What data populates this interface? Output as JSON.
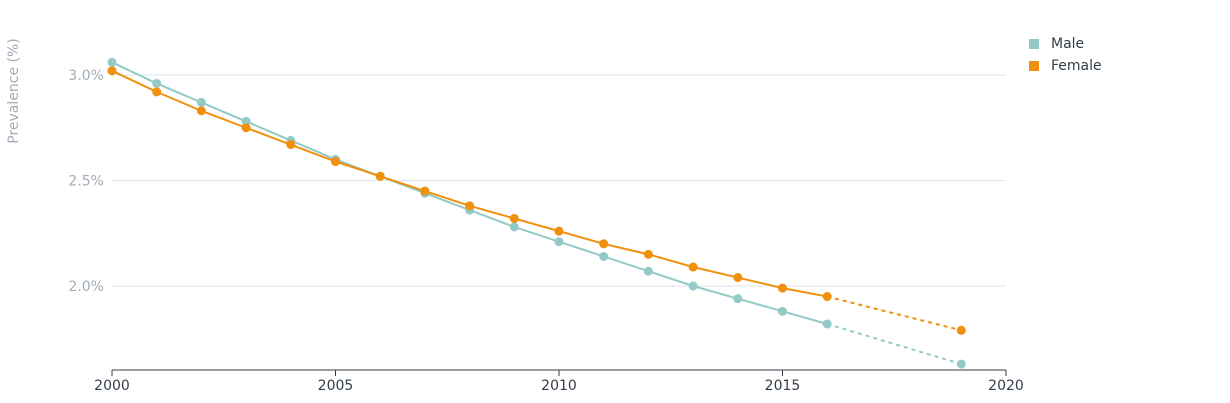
{
  "chart_data": {
    "type": "line",
    "title": "",
    "xlabel": "",
    "ylabel": "Prevalence (%)",
    "xlim": [
      2000,
      2020
    ],
    "ylim": [
      1.6,
      3.3
    ],
    "x_ticks": [
      2000,
      2005,
      2010,
      2015,
      2020
    ],
    "x_tick_labels": [
      "2000",
      "2005",
      "2010",
      "2015",
      "2020"
    ],
    "y_ticks": [
      2.0,
      2.5,
      3.0
    ],
    "y_tick_labels": [
      "2.0%",
      "2.5%",
      "3.0%"
    ],
    "grid": "horizontal",
    "legend_position": "top-right",
    "series": [
      {
        "name": "Male",
        "color": "#93c9c6",
        "x": [
          2000,
          2001,
          2002,
          2003,
          2004,
          2005,
          2006,
          2007,
          2008,
          2009,
          2010,
          2011,
          2012,
          2013,
          2014,
          2015,
          2016,
          2019
        ],
        "y": [
          3.06,
          2.96,
          2.87,
          2.78,
          2.69,
          2.6,
          2.52,
          2.44,
          2.36,
          2.28,
          2.21,
          2.14,
          2.07,
          2.0,
          1.94,
          1.88,
          1.82,
          1.63
        ],
        "dashed_from_x": 2016
      },
      {
        "name": "Female",
        "color": "#f0900c",
        "x": [
          2000,
          2001,
          2002,
          2003,
          2004,
          2005,
          2006,
          2007,
          2008,
          2009,
          2010,
          2011,
          2012,
          2013,
          2014,
          2015,
          2016,
          2019
        ],
        "y": [
          3.02,
          2.92,
          2.83,
          2.75,
          2.67,
          2.59,
          2.52,
          2.45,
          2.38,
          2.32,
          2.26,
          2.2,
          2.15,
          2.09,
          2.04,
          1.99,
          1.95,
          1.79
        ],
        "dashed_from_x": 2016
      }
    ]
  }
}
